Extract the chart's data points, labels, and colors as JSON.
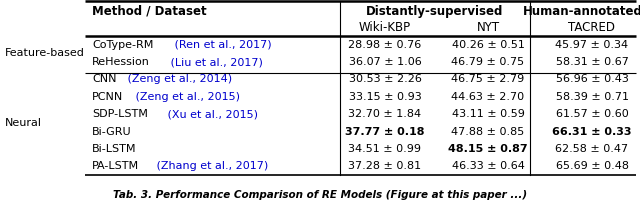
{
  "row_groups": [
    {
      "group_label": "Feature-based",
      "rows": [
        {
          "method": "CoType-RM",
          "cite": " (Ren et al., 2017)",
          "wiki_kbp": "28.98 ± 0.76",
          "nyt": "40.26 ± 0.51",
          "tacred": "45.97 ± 0.34",
          "bold_wiki": false,
          "bold_nyt": false,
          "bold_tacred": false
        },
        {
          "method": "ReHession",
          "cite": " (Liu et al., 2017)",
          "wiki_kbp": "36.07 ± 1.06",
          "nyt": "46.79 ± 0.75",
          "tacred": "58.31 ± 0.67",
          "bold_wiki": false,
          "bold_nyt": false,
          "bold_tacred": false
        }
      ]
    },
    {
      "group_label": "Neural",
      "rows": [
        {
          "method": "CNN",
          "cite": " (Zeng et al., 2014)",
          "wiki_kbp": "30.53 ± 2.26",
          "nyt": "46.75 ± 2.79",
          "tacred": "56.96 ± 0.43",
          "bold_wiki": false,
          "bold_nyt": false,
          "bold_tacred": false
        },
        {
          "method": "PCNN",
          "cite": " (Zeng et al., 2015)",
          "wiki_kbp": "33.15 ± 0.93",
          "nyt": "44.63 ± 2.70",
          "tacred": "58.39 ± 0.71",
          "bold_wiki": false,
          "bold_nyt": false,
          "bold_tacred": false
        },
        {
          "method": "SDP-LSTM",
          "cite": " (Xu et al., 2015)",
          "wiki_kbp": "32.70 ± 1.84",
          "nyt": "43.11 ± 0.59",
          "tacred": "61.57 ± 0.60",
          "bold_wiki": false,
          "bold_nyt": false,
          "bold_tacred": false
        },
        {
          "method": "Bi-GRU",
          "cite": "",
          "wiki_kbp": "37.77 ± 0.18",
          "nyt": "47.88 ± 0.85",
          "tacred": "66.31 ± 0.33",
          "bold_wiki": true,
          "bold_nyt": false,
          "bold_tacred": true
        },
        {
          "method": "Bi-LSTM",
          "cite": "",
          "wiki_kbp": "34.51 ± 0.99",
          "nyt": "48.15 ± 0.87",
          "tacred": "62.58 ± 0.47",
          "bold_wiki": false,
          "bold_nyt": true,
          "bold_tacred": false
        },
        {
          "method": "PA-LSTM",
          "cite": " (Zhang et al., 2017)",
          "wiki_kbp": "37.28 ± 0.81",
          "nyt": "46.33 ± 0.64",
          "tacred": "65.69 ± 0.48",
          "bold_wiki": false,
          "bold_nyt": false,
          "bold_tacred": false
        }
      ]
    }
  ],
  "cite_color": "#0000CD",
  "text_color": "#000000",
  "bg_color": "#FFFFFF",
  "font_size": 8.0,
  "header_font_size": 8.5,
  "caption": "Tab. 3. Performance Comparison of RE Models (Figure at this paper ...)"
}
